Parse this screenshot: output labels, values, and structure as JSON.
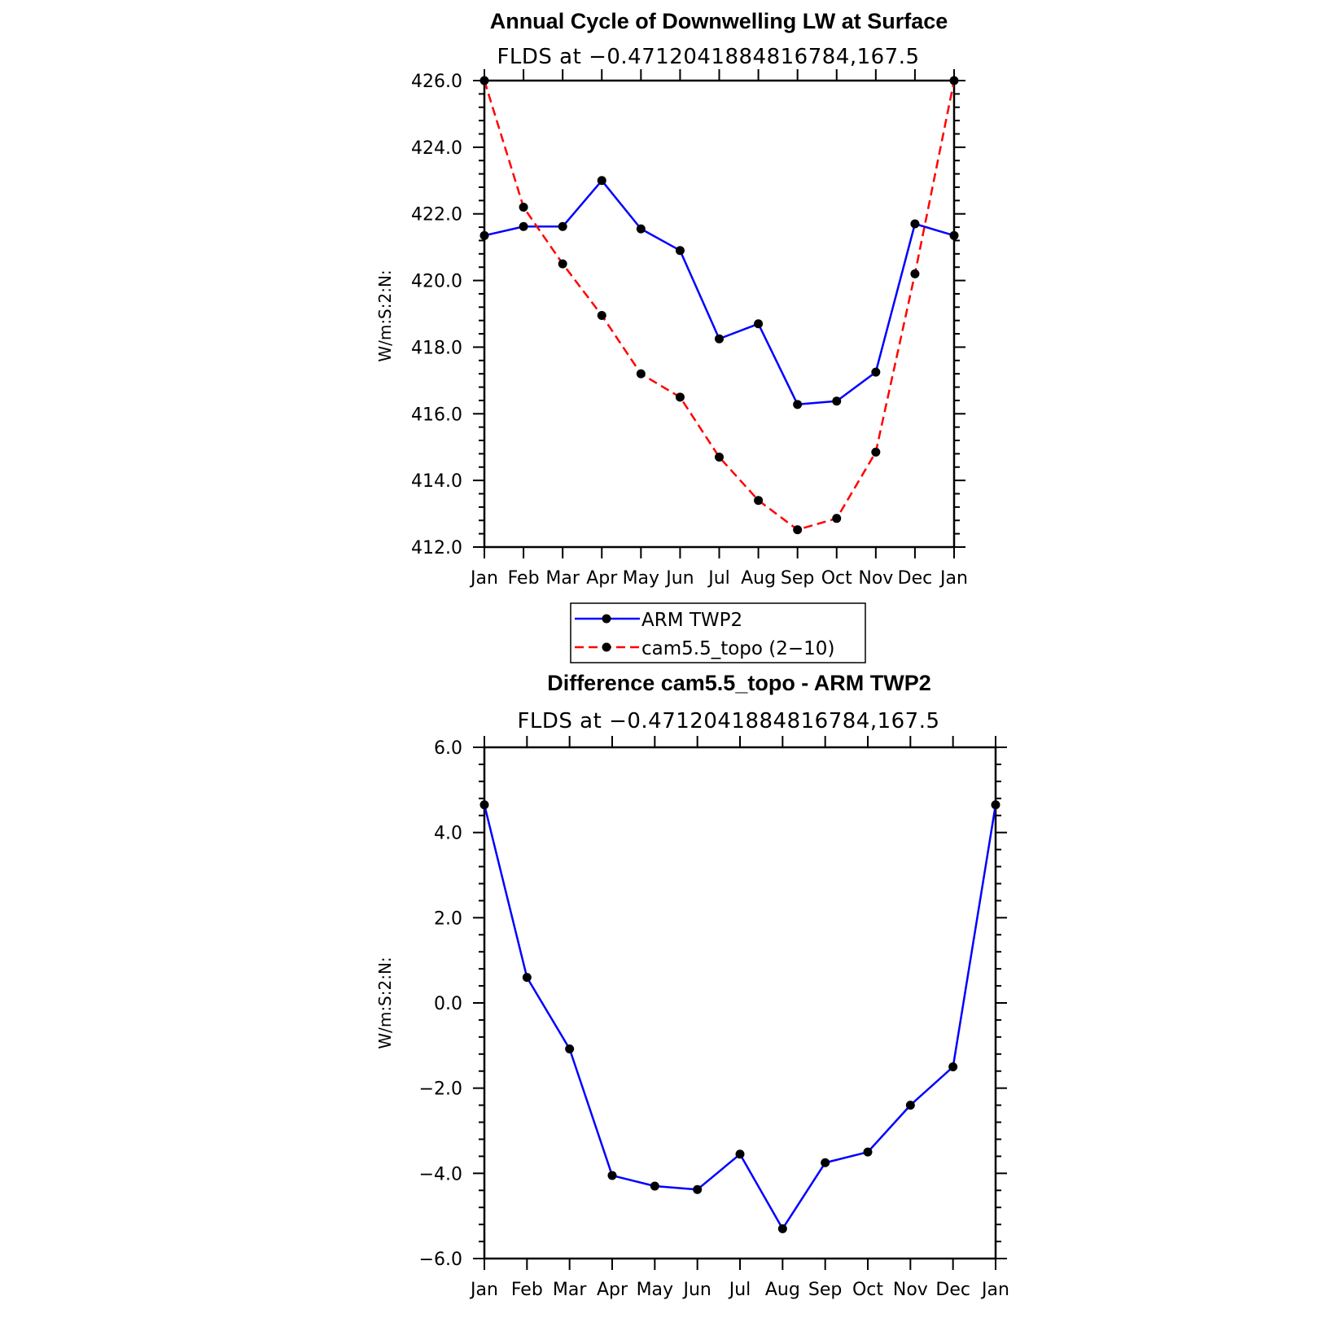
{
  "chart_data": [
    {
      "type": "line",
      "title": "Annual Cycle of Downwelling LW at Surface",
      "subtitle": "FLDS at −0.4712041884816784,167.5",
      "xlabel": "",
      "ylabel": "W/m:S:2:N:",
      "categories": [
        "Jan",
        "Feb",
        "Mar",
        "Apr",
        "May",
        "Jun",
        "Jul",
        "Aug",
        "Sep",
        "Oct",
        "Nov",
        "Dec",
        "Jan"
      ],
      "ylim": [
        412.0,
        426.0
      ],
      "yticks": [
        "412.0",
        "414.0",
        "416.0",
        "418.0",
        "420.0",
        "422.0",
        "424.0",
        "426.0"
      ],
      "ytick_values": [
        412,
        414,
        416,
        418,
        420,
        422,
        424,
        426
      ],
      "grid": false,
      "series": [
        {
          "name": "ARM TWP2",
          "color": "#0000ff",
          "dash": false,
          "values": [
            421.35,
            421.62,
            421.62,
            423.0,
            421.55,
            420.9,
            418.25,
            418.7,
            416.28,
            416.38,
            417.25,
            421.7,
            421.35
          ]
        },
        {
          "name": "cam5.5_topo (2−10)",
          "color": "#ff0000",
          "dash": true,
          "values": [
            426.0,
            422.2,
            420.5,
            418.95,
            417.2,
            416.5,
            414.7,
            413.4,
            412.52,
            412.86,
            414.85,
            420.2,
            426.0
          ]
        }
      ],
      "legend": {
        "placement": "bottom-center"
      }
    },
    {
      "type": "line",
      "title": "Difference cam5.5_topo - ARM TWP2",
      "subtitle": "FLDS at −0.4712041884816784,167.5",
      "xlabel": "",
      "ylabel": "W/m:S:2:N:",
      "categories": [
        "Jan",
        "Feb",
        "Mar",
        "Apr",
        "May",
        "Jun",
        "Jul",
        "Aug",
        "Sep",
        "Oct",
        "Nov",
        "Dec",
        "Jan"
      ],
      "ylim": [
        -6.0,
        6.0
      ],
      "yticks": [
        "−6.0",
        "−4.0",
        "−2.0",
        "0.0",
        "2.0",
        "4.0",
        "6.0"
      ],
      "ytick_values": [
        -6,
        -4,
        -2,
        0,
        2,
        4,
        6
      ],
      "grid": false,
      "series": [
        {
          "color": "#0000ff",
          "dash": false,
          "values": [
            4.65,
            0.6,
            -1.08,
            -4.05,
            -4.3,
            -4.38,
            -3.55,
            -5.3,
            -3.75,
            -3.5,
            -2.4,
            -1.5,
            4.65
          ]
        }
      ]
    }
  ]
}
